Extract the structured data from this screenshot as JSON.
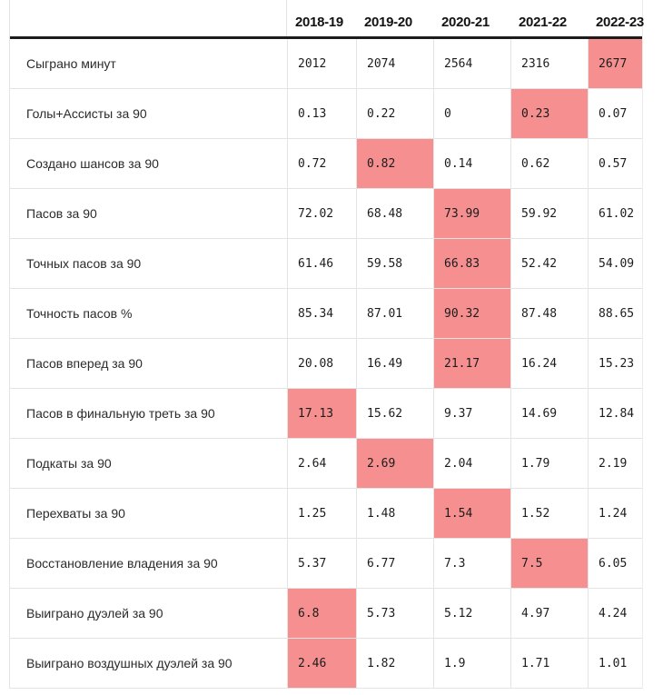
{
  "colors": {
    "highlight": "#f58f90",
    "gridline": "#e4e4e4",
    "header_rule": "#1c1c1c",
    "text": "#1c1c1c"
  },
  "table": {
    "season_columns": [
      "2018-19",
      "2019-20",
      "2020-21",
      "2021-22",
      "2022-23"
    ],
    "rows": [
      {
        "label": "Сыграно минут",
        "values": [
          "2012",
          "2074",
          "2564",
          "2316",
          "2677"
        ],
        "highlight_index": 4
      },
      {
        "label": "Голы+Ассисты за 90",
        "values": [
          "0.13",
          "0.22",
          "0",
          "0.23",
          "0.07"
        ],
        "highlight_index": 3
      },
      {
        "label": "Создано шансов за 90",
        "values": [
          "0.72",
          "0.82",
          "0.14",
          "0.62",
          "0.57"
        ],
        "highlight_index": 1
      },
      {
        "label": "Пасов за 90",
        "values": [
          "72.02",
          "68.48",
          "73.99",
          "59.92",
          "61.02"
        ],
        "highlight_index": 2
      },
      {
        "label": "Точных пасов за 90",
        "values": [
          "61.46",
          "59.58",
          "66.83",
          "52.42",
          "54.09"
        ],
        "highlight_index": 2
      },
      {
        "label": "Точность пасов %",
        "values": [
          "85.34",
          "87.01",
          "90.32",
          "87.48",
          "88.65"
        ],
        "highlight_index": 2
      },
      {
        "label": "Пасов вперед за 90",
        "values": [
          "20.08",
          "16.49",
          "21.17",
          "16.24",
          "15.23"
        ],
        "highlight_index": 2
      },
      {
        "label": "Пасов в финальную треть за 90",
        "values": [
          "17.13",
          "15.62",
          "9.37",
          "14.69",
          "12.84"
        ],
        "highlight_index": 0
      },
      {
        "label": "Подкаты за 90",
        "values": [
          "2.64",
          "2.69",
          "2.04",
          "1.79",
          "2.19"
        ],
        "highlight_index": 1
      },
      {
        "label": "Перехваты за 90",
        "values": [
          "1.25",
          "1.48",
          "1.54",
          "1.52",
          "1.24"
        ],
        "highlight_index": 2
      },
      {
        "label": "Восстановление владения за 90",
        "values": [
          "5.37",
          "6.77",
          "7.3",
          "7.5",
          "6.05"
        ],
        "highlight_index": 3
      },
      {
        "label": "Выиграно дуэлей за 90",
        "values": [
          "6.8",
          "5.73",
          "5.12",
          "4.97",
          "4.24"
        ],
        "highlight_index": 0
      },
      {
        "label": "Выиграно воздушных дуэлей за 90",
        "values": [
          "2.46",
          "1.82",
          "1.9",
          "1.71",
          "1.01"
        ],
        "highlight_index": 0
      }
    ]
  },
  "chart_data": {
    "type": "table",
    "title": "",
    "categories": [
      "2018-19",
      "2019-20",
      "2020-21",
      "2021-22",
      "2022-23"
    ],
    "series": [
      {
        "name": "Сыграно минут",
        "values": [
          2012,
          2074,
          2564,
          2316,
          2677
        ]
      },
      {
        "name": "Голы+Ассисты за 90",
        "values": [
          0.13,
          0.22,
          0,
          0.23,
          0.07
        ]
      },
      {
        "name": "Создано шансов за 90",
        "values": [
          0.72,
          0.82,
          0.14,
          0.62,
          0.57
        ]
      },
      {
        "name": "Пасов за 90",
        "values": [
          72.02,
          68.48,
          73.99,
          59.92,
          61.02
        ]
      },
      {
        "name": "Точных пасов за 90",
        "values": [
          61.46,
          59.58,
          66.83,
          52.42,
          54.09
        ]
      },
      {
        "name": "Точность пасов %",
        "values": [
          85.34,
          87.01,
          90.32,
          87.48,
          88.65
        ]
      },
      {
        "name": "Пасов вперед за 90",
        "values": [
          20.08,
          16.49,
          21.17,
          16.24,
          15.23
        ]
      },
      {
        "name": "Пасов в финальную треть за 90",
        "values": [
          17.13,
          15.62,
          9.37,
          14.69,
          12.84
        ]
      },
      {
        "name": "Подкаты за 90",
        "values": [
          2.64,
          2.69,
          2.04,
          1.79,
          2.19
        ]
      },
      {
        "name": "Перехваты за 90",
        "values": [
          1.25,
          1.48,
          1.54,
          1.52,
          1.24
        ]
      },
      {
        "name": "Восстановление владения за 90",
        "values": [
          5.37,
          6.77,
          7.3,
          7.5,
          6.05
        ]
      },
      {
        "name": "Выиграно дуэлей за 90",
        "values": [
          6.8,
          5.73,
          5.12,
          4.97,
          4.24
        ]
      },
      {
        "name": "Выиграно воздушных дуэлей за 90",
        "values": [
          2.46,
          1.82,
          1.9,
          1.71,
          1.01
        ]
      }
    ],
    "annotations": "row maximum value per metric is highlighted with salmon background",
    "legend_position": "none",
    "grid": true
  }
}
